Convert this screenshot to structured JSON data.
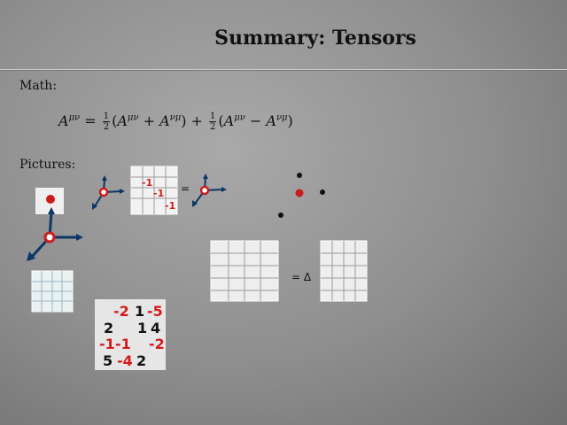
{
  "slide": {
    "title": "Summary: Tensors",
    "math_label": "Math:",
    "pictures_label": "Pictures:"
  },
  "formula": {
    "lhs": "A",
    "index_mu_nu": "μν",
    "index_nu_mu": "νμ",
    "half_num": "1",
    "half_den": "2"
  },
  "matrix_4x4": {
    "cells": [
      [
        "-2",
        "1",
        "-5"
      ],
      [
        "2",
        "1",
        "4"
      ],
      [
        "-1",
        "-1",
        "-2"
      ],
      [
        "5",
        "-4",
        "2"
      ]
    ]
  },
  "small_matrix": {
    "entries": [
      "-1",
      "-1",
      "-1"
    ]
  },
  "operators": {
    "equals": "=",
    "delta": "= Δ"
  },
  "colors": {
    "arrow_blue": "#0b3766",
    "node_red": "#cc1b1b",
    "chalk_red": "#d21c1c"
  }
}
